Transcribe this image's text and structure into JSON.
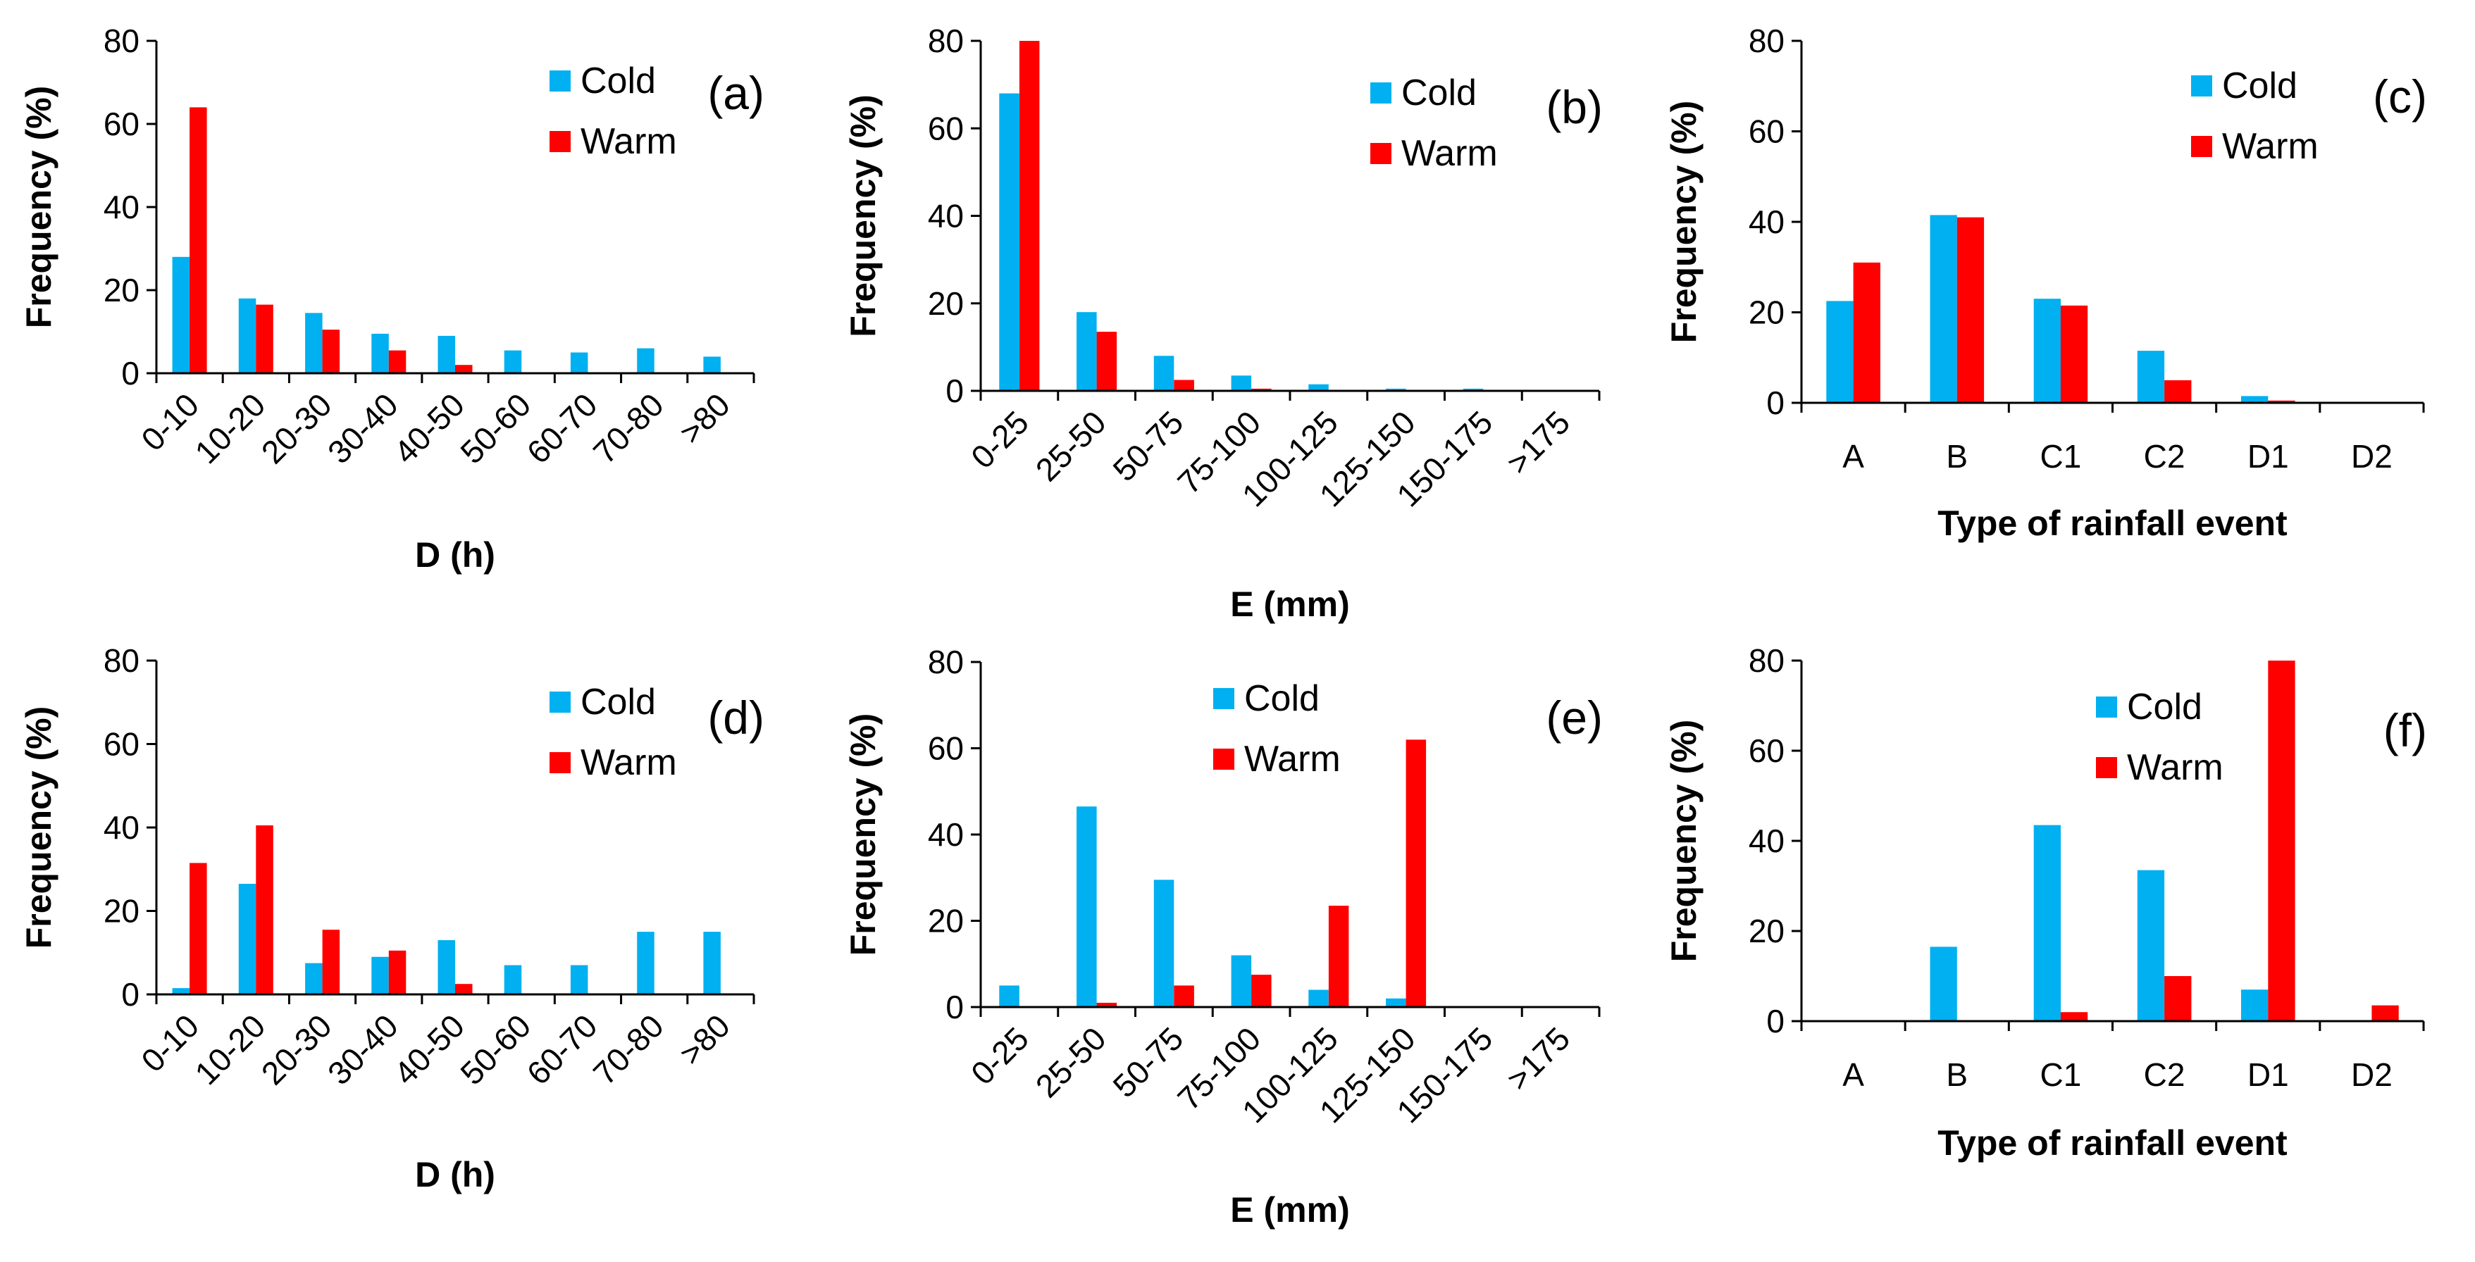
{
  "colors": {
    "cold": "#00b0f0",
    "warm": "#ff0000",
    "axis": "#000000"
  },
  "chart_data": [
    {
      "type": "bar",
      "panel": "(a)",
      "categories": [
        "0-10",
        "10-20",
        "20-30",
        "30-40",
        "40-50",
        "50-60",
        "60-70",
        "70-80",
        ">80"
      ],
      "series": [
        {
          "name": "Cold",
          "values": [
            28,
            18,
            14.5,
            9.5,
            9,
            5.5,
            5,
            6,
            4
          ]
        },
        {
          "name": "Warm",
          "values": [
            64,
            16.5,
            10.5,
            5.5,
            2,
            0,
            0,
            0,
            0
          ]
        }
      ],
      "xlabel": "D (h)",
      "ylabel": "Frequency (%)",
      "ylim": [
        0,
        80
      ],
      "yticks": [
        0,
        20,
        40,
        60,
        80
      ],
      "rotate_xticks": true,
      "legend": "top-right"
    },
    {
      "type": "bar",
      "panel": "(b)",
      "categories": [
        "0-25",
        "25-50",
        "50-75",
        "75-100",
        "100-125",
        "125-150",
        "150-175",
        ">175"
      ],
      "series": [
        {
          "name": "Cold",
          "values": [
            68,
            18,
            8,
            3.5,
            1.5,
            0.5,
            0.5,
            0
          ]
        },
        {
          "name": "Warm",
          "values": [
            80,
            13.5,
            2.5,
            0.5,
            0,
            0,
            0,
            0
          ]
        }
      ],
      "xlabel": "E (mm)",
      "ylabel": "Frequency (%)",
      "ylim": [
        0,
        80
      ],
      "yticks": [
        0,
        20,
        40,
        60,
        80
      ],
      "rotate_xticks": true,
      "legend": "top-right"
    },
    {
      "type": "bar",
      "panel": "(c)",
      "categories": [
        "A",
        "B",
        "C1",
        "C2",
        "D1",
        "D2"
      ],
      "series": [
        {
          "name": "Cold",
          "values": [
            22.5,
            41.5,
            23,
            11.5,
            1.5,
            0
          ]
        },
        {
          "name": "Warm",
          "values": [
            31,
            41,
            21.5,
            5,
            0.5,
            0
          ]
        }
      ],
      "xlabel": "Type of rainfall event",
      "ylabel": "Frequency (%)",
      "ylim": [
        0,
        80
      ],
      "yticks": [
        0,
        20,
        40,
        60,
        80
      ],
      "rotate_xticks": false,
      "legend": "top-right"
    },
    {
      "type": "bar",
      "panel": "(d)",
      "categories": [
        "0-10",
        "10-20",
        "20-30",
        "30-40",
        "40-50",
        "50-60",
        "60-70",
        "70-80",
        ">80"
      ],
      "series": [
        {
          "name": "Cold",
          "values": [
            1.5,
            26.5,
            7.5,
            9,
            13,
            7,
            7,
            15,
            15
          ]
        },
        {
          "name": "Warm",
          "values": [
            31.5,
            40.5,
            15.5,
            10.5,
            2.5,
            0,
            0,
            0,
            0
          ]
        }
      ],
      "xlabel": "D (h)",
      "ylabel": "Frequency (%)",
      "ylim": [
        0,
        80
      ],
      "yticks": [
        0,
        20,
        40,
        60,
        80
      ],
      "rotate_xticks": true,
      "legend": "top-right"
    },
    {
      "type": "bar",
      "panel": "(e)",
      "categories": [
        "0-25",
        "25-50",
        "50-75",
        "75-100",
        "100-125",
        "125-150",
        "150-175",
        ">175"
      ],
      "series": [
        {
          "name": "Cold",
          "values": [
            5,
            46.5,
            29.5,
            12,
            4,
            2,
            0,
            0
          ]
        },
        {
          "name": "Warm",
          "values": [
            0,
            1,
            5,
            7.5,
            23.5,
            62,
            0,
            0
          ]
        }
      ],
      "xlabel": "E (mm)",
      "ylabel": "Frequency (%)",
      "ylim": [
        0,
        80
      ],
      "yticks": [
        0,
        20,
        40,
        60,
        80
      ],
      "rotate_xticks": true,
      "legend": "top-center"
    },
    {
      "type": "bar",
      "panel": "(f)",
      "categories": [
        "A",
        "B",
        "C1",
        "C2",
        "D1",
        "D2"
      ],
      "series": [
        {
          "name": "Cold",
          "values": [
            0,
            16.5,
            43.5,
            33.5,
            7,
            0
          ]
        },
        {
          "name": "Warm",
          "values": [
            0,
            0,
            2,
            10,
            80,
            3.5
          ]
        }
      ],
      "xlabel": "Type of rainfall event",
      "ylabel": "Frequency (%)",
      "ylim": [
        0,
        80
      ],
      "yticks": [
        0,
        20,
        40,
        60,
        80
      ],
      "rotate_xticks": false,
      "legend": "top-center"
    }
  ]
}
